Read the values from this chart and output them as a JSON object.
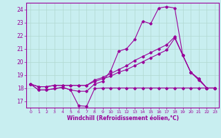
{
  "xlabel": "Windchill (Refroidissement éolien,°C)",
  "bg_color": "#c8eef0",
  "line_color": "#990099",
  "grid_color": "#b0d8d0",
  "xlim": [
    -0.5,
    23.5
  ],
  "ylim": [
    16.5,
    24.5
  ],
  "yticks": [
    17,
    18,
    19,
    20,
    21,
    22,
    23,
    24
  ],
  "xticks": [
    0,
    1,
    2,
    3,
    4,
    5,
    6,
    7,
    8,
    9,
    10,
    11,
    12,
    13,
    14,
    15,
    16,
    17,
    18,
    19,
    20,
    21,
    22,
    23
  ],
  "series1_x": [
    0,
    1,
    2,
    3,
    4,
    5,
    6,
    7,
    8,
    9,
    10,
    11,
    12,
    13,
    14,
    15,
    16,
    17,
    18,
    19,
    20,
    21,
    22,
    23
  ],
  "series1_y": [
    18.3,
    17.85,
    17.85,
    17.95,
    18.05,
    17.85,
    16.65,
    16.6,
    17.95,
    18.0,
    18.0,
    18.0,
    18.0,
    18.0,
    18.0,
    18.0,
    18.0,
    18.0,
    18.0,
    18.0,
    18.0,
    18.0,
    18.0,
    18.0
  ],
  "series2_x": [
    0,
    1,
    2,
    3,
    4,
    5,
    6,
    7,
    8,
    9,
    10,
    11,
    12,
    13,
    14,
    15,
    16,
    17,
    18,
    19,
    20,
    21,
    22,
    23
  ],
  "series2_y": [
    18.3,
    17.85,
    17.85,
    17.95,
    18.05,
    17.85,
    17.75,
    17.75,
    18.3,
    18.5,
    19.3,
    20.8,
    21.0,
    21.7,
    23.1,
    22.9,
    24.1,
    24.2,
    24.1,
    20.5,
    19.2,
    18.6,
    18.0,
    18.0
  ],
  "series3_x": [
    0,
    1,
    2,
    3,
    4,
    5,
    6,
    7,
    8,
    9,
    10,
    11,
    12,
    13,
    14,
    15,
    16,
    17,
    18,
    19,
    20,
    21,
    22,
    23
  ],
  "series3_y": [
    18.3,
    18.1,
    18.1,
    18.2,
    18.2,
    18.2,
    18.2,
    18.2,
    18.5,
    18.7,
    18.9,
    19.2,
    19.4,
    19.7,
    20.0,
    20.3,
    20.6,
    20.9,
    21.8,
    20.5,
    19.2,
    18.7,
    18.0,
    18.0
  ],
  "series4_x": [
    0,
    1,
    2,
    3,
    4,
    5,
    6,
    7,
    8,
    9,
    10,
    11,
    12,
    13,
    14,
    15,
    16,
    17,
    18,
    19,
    20,
    21,
    22,
    23
  ],
  "series4_y": [
    18.3,
    18.1,
    18.1,
    18.2,
    18.2,
    18.2,
    18.2,
    18.2,
    18.6,
    18.8,
    19.1,
    19.4,
    19.7,
    20.1,
    20.4,
    20.7,
    21.0,
    21.3,
    21.9,
    20.5,
    19.2,
    18.7,
    18.0,
    18.0
  ]
}
